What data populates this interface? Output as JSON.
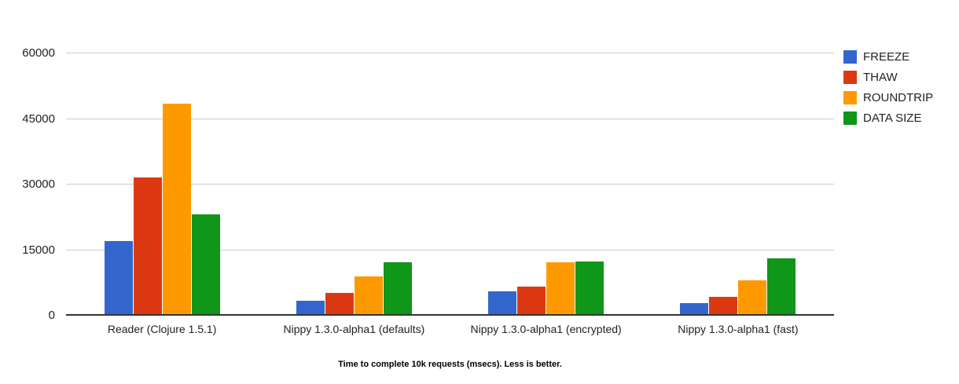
{
  "chart_data": {
    "type": "bar",
    "title": "Time to complete 10k requests (msecs). Less is better.",
    "categories": [
      "Reader (Clojure 1.5.1)",
      "Nippy 1.3.0-alpha1 (defaults)",
      "Nippy 1.3.0-alpha1 (encrypted)",
      "Nippy 1.3.0-alpha1 (fast)"
    ],
    "series": [
      {
        "name": "FREEZE",
        "color": "#3366CC",
        "values": [
          17000,
          3500,
          5600,
          2900
        ]
      },
      {
        "name": "THAW",
        "color": "#DC3912",
        "values": [
          31600,
          5200,
          6600,
          4400
        ]
      },
      {
        "name": "ROUNDTRIP",
        "color": "#FF9900",
        "values": [
          48500,
          9000,
          12300,
          8100
        ]
      },
      {
        "name": "DATA SIZE",
        "color": "#109618",
        "values": [
          23100,
          12200,
          12400,
          13100
        ]
      }
    ],
    "ylim": [
      0,
      60000
    ],
    "yticks": [
      0,
      15000,
      30000,
      45000,
      60000
    ],
    "grid": true,
    "legend_position": "right",
    "xlabel": "",
    "ylabel": ""
  },
  "colors": {
    "background": "#FFFFFF",
    "gridline": "#CCCCCC",
    "axis_line": "#333333",
    "axis_text": "#222222",
    "caption_text": "#000000"
  }
}
